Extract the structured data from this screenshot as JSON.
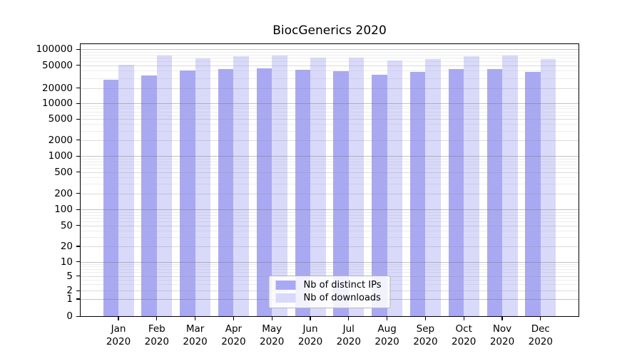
{
  "page": {
    "title": "BiocGenerics 2020"
  },
  "chart_data": {
    "type": "bar",
    "title": "BiocGenerics 2020",
    "categories": [
      "Jan",
      "Feb",
      "Mar",
      "Apr",
      "May",
      "Jun",
      "Jul",
      "Aug",
      "Sep",
      "Oct",
      "Nov",
      "Dec"
    ],
    "category_year": "2020",
    "series": [
      {
        "name": "Nb of distinct IPs",
        "color": "#a9a9f3",
        "values": [
          28000,
          33000,
          40000,
          43000,
          44700,
          41300,
          39200,
          33800,
          38000,
          42500,
          43500,
          38400
        ]
      },
      {
        "name": "Nb of downloads",
        "color": "#d9d9fa",
        "values": [
          51500,
          75500,
          67500,
          73000,
          76400,
          70600,
          68600,
          61500,
          64500,
          74500,
          77000,
          66000
        ]
      }
    ],
    "yscale": "symlog",
    "ytick_values": [
      0,
      1,
      2,
      5,
      10,
      20,
      50,
      100,
      200,
      500,
      1000,
      2000,
      5000,
      10000,
      20000,
      50000,
      100000
    ],
    "ytick_labels": [
      "0",
      "1",
      "2",
      "5",
      "10",
      "20",
      "50",
      "100",
      "200",
      "500",
      "1000",
      "2000",
      "5000",
      "10000",
      "20000",
      "50000",
      "100000"
    ],
    "ylim": [
      0,
      130000
    ],
    "grid": "horizontal, major and minor, drawn over bars",
    "legend_position": "lower center",
    "legend": [
      {
        "label": "Nb of distinct IPs",
        "color": "#a9a9f3"
      },
      {
        "label": "Nb of downloads",
        "color": "#d9d9fa"
      }
    ]
  }
}
